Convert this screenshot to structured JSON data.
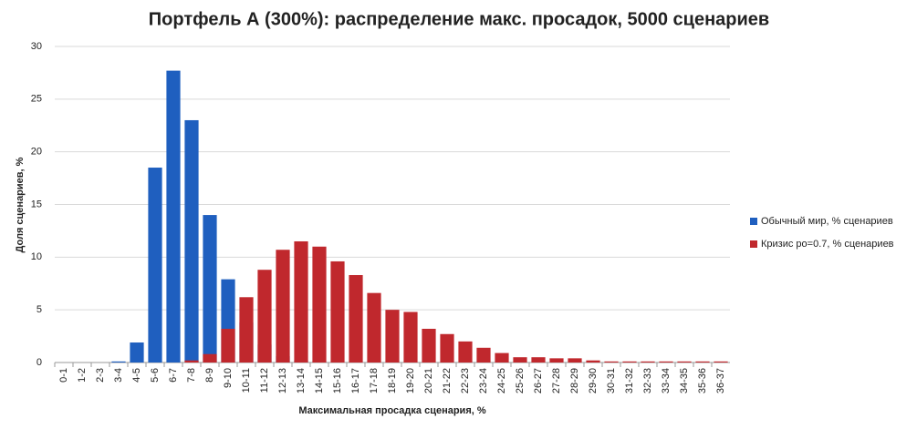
{
  "chart_data": {
    "type": "bar",
    "title": "Портфель А (300%): распределение макс. просадок, 5000 сценариев",
    "x_label": "Максимальная просадка сценария, %",
    "y_label": "Доля сценариев, %",
    "categories": [
      "0-1",
      "1-2",
      "2-3",
      "3-4",
      "4-5",
      "5-6",
      "6-7",
      "7-8",
      "8-9",
      "9-10",
      "10-11",
      "11-12",
      "12-13",
      "13-14",
      "14-15",
      "15-16",
      "16-17",
      "17-18",
      "18-19",
      "19-20",
      "20-21",
      "21-22",
      "22-23",
      "23-24",
      "24-25",
      "25-26",
      "26-27",
      "27-28",
      "28-29",
      "29-30",
      "30-31",
      "31-32",
      "32-33",
      "33-34",
      "34-35",
      "35-36",
      "36-37"
    ],
    "series": [
      {
        "name": "Обычный мир, % сценариев",
        "color": "#1f5fbf",
        "values": [
          0,
          0,
          0,
          0.1,
          1.9,
          18.5,
          27.7,
          23.0,
          14.0,
          7.9,
          3.8,
          1.7,
          0.6,
          0.2,
          0.1,
          0,
          0,
          0,
          0,
          0,
          0,
          0,
          0,
          0,
          0,
          0,
          0,
          0,
          0,
          0,
          0,
          0,
          0,
          0,
          0,
          0,
          0
        ]
      },
      {
        "name": "Кризис ро=0.7, % сценариев",
        "color": "#c0282d",
        "values": [
          0,
          0,
          0,
          0,
          0,
          0,
          0,
          0.2,
          0.8,
          3.2,
          6.2,
          8.8,
          10.7,
          11.5,
          11.0,
          9.6,
          8.3,
          6.6,
          5.0,
          4.8,
          3.2,
          2.7,
          2.0,
          1.4,
          0.9,
          0.5,
          0.5,
          0.4,
          0.4,
          0.2,
          0.1,
          0.1,
          0.1,
          0.1,
          0.1,
          0.1,
          0.1
        ]
      }
    ],
    "ylim": [
      0,
      30
    ],
    "yticks": [
      0,
      5,
      10,
      15,
      20,
      25,
      30
    ],
    "grid": true,
    "legend": "right"
  }
}
